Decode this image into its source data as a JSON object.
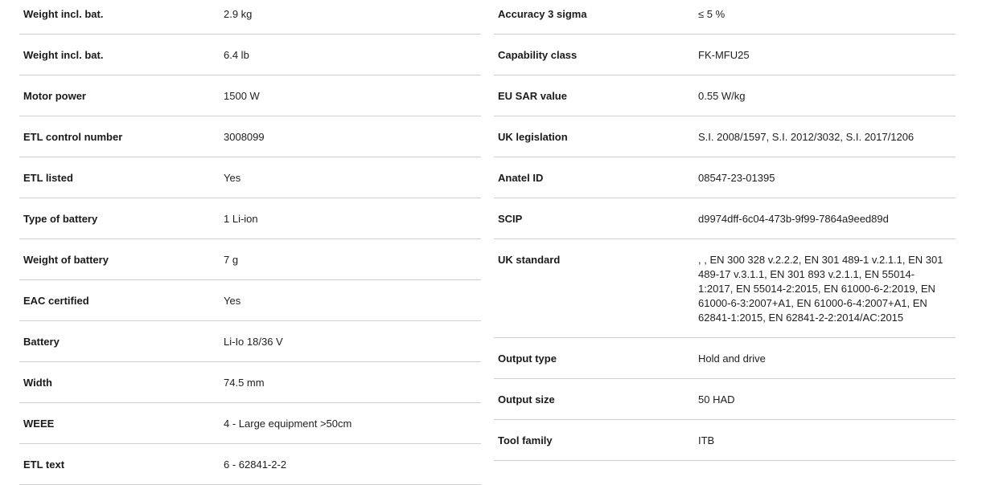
{
  "left": [
    {
      "label": "Weight incl. bat.",
      "value": "2.9 kg"
    },
    {
      "label": "Weight incl. bat.",
      "value": "6.4 lb"
    },
    {
      "label": "Motor power",
      "value": "1500 W"
    },
    {
      "label": "ETL control number",
      "value": "3008099"
    },
    {
      "label": "ETL listed",
      "value": "Yes"
    },
    {
      "label": "Type of battery",
      "value": "1 Li-ion"
    },
    {
      "label": "Weight of battery",
      "value": "7 g"
    },
    {
      "label": "EAC certified",
      "value": "Yes"
    },
    {
      "label": "Battery",
      "value": "Li-Io 18/36 V"
    },
    {
      "label": "Width",
      "value": "74.5 mm"
    },
    {
      "label": "WEEE",
      "value": "4 - Large equipment >50cm"
    },
    {
      "label": "ETL text",
      "value": "6 - 62841-2-2"
    }
  ],
  "right": [
    {
      "label": "Accuracy 3 sigma",
      "value": "≤ 5 %"
    },
    {
      "label": "Capability class",
      "value": "FK-MFU25"
    },
    {
      "label": "EU SAR value",
      "value": "0.55 W/kg"
    },
    {
      "label": "UK legislation",
      "value": "S.I. 2008/1597, S.I. 2012/3032, S.I. 2017/1206"
    },
    {
      "label": "Anatel ID",
      "value": "08547-23-01395"
    },
    {
      "label": "SCIP",
      "value": "d9974dff-6c04-473b-9f99-7864a9eed89d"
    },
    {
      "label": "UK standard",
      "value": ", , EN 300 328 v.2.2.2, EN 301 489-1 v.2.1.1, EN 301 489-17 v.3.1.1, EN 301 893 v.2.1.1, EN 55014-1:2017, EN 55014-2:2015, EN 61000-6-2:2019, EN 61000-6-3:2007+A1, EN 61000-6-4:2007+A1, EN 62841-1:2015, EN 62841-2-2:2014/AC:2015"
    },
    {
      "label": "Output type",
      "value": "Hold and drive"
    },
    {
      "label": "Output size",
      "value": "50 HAD"
    },
    {
      "label": "Tool family",
      "value": "ITB"
    }
  ]
}
